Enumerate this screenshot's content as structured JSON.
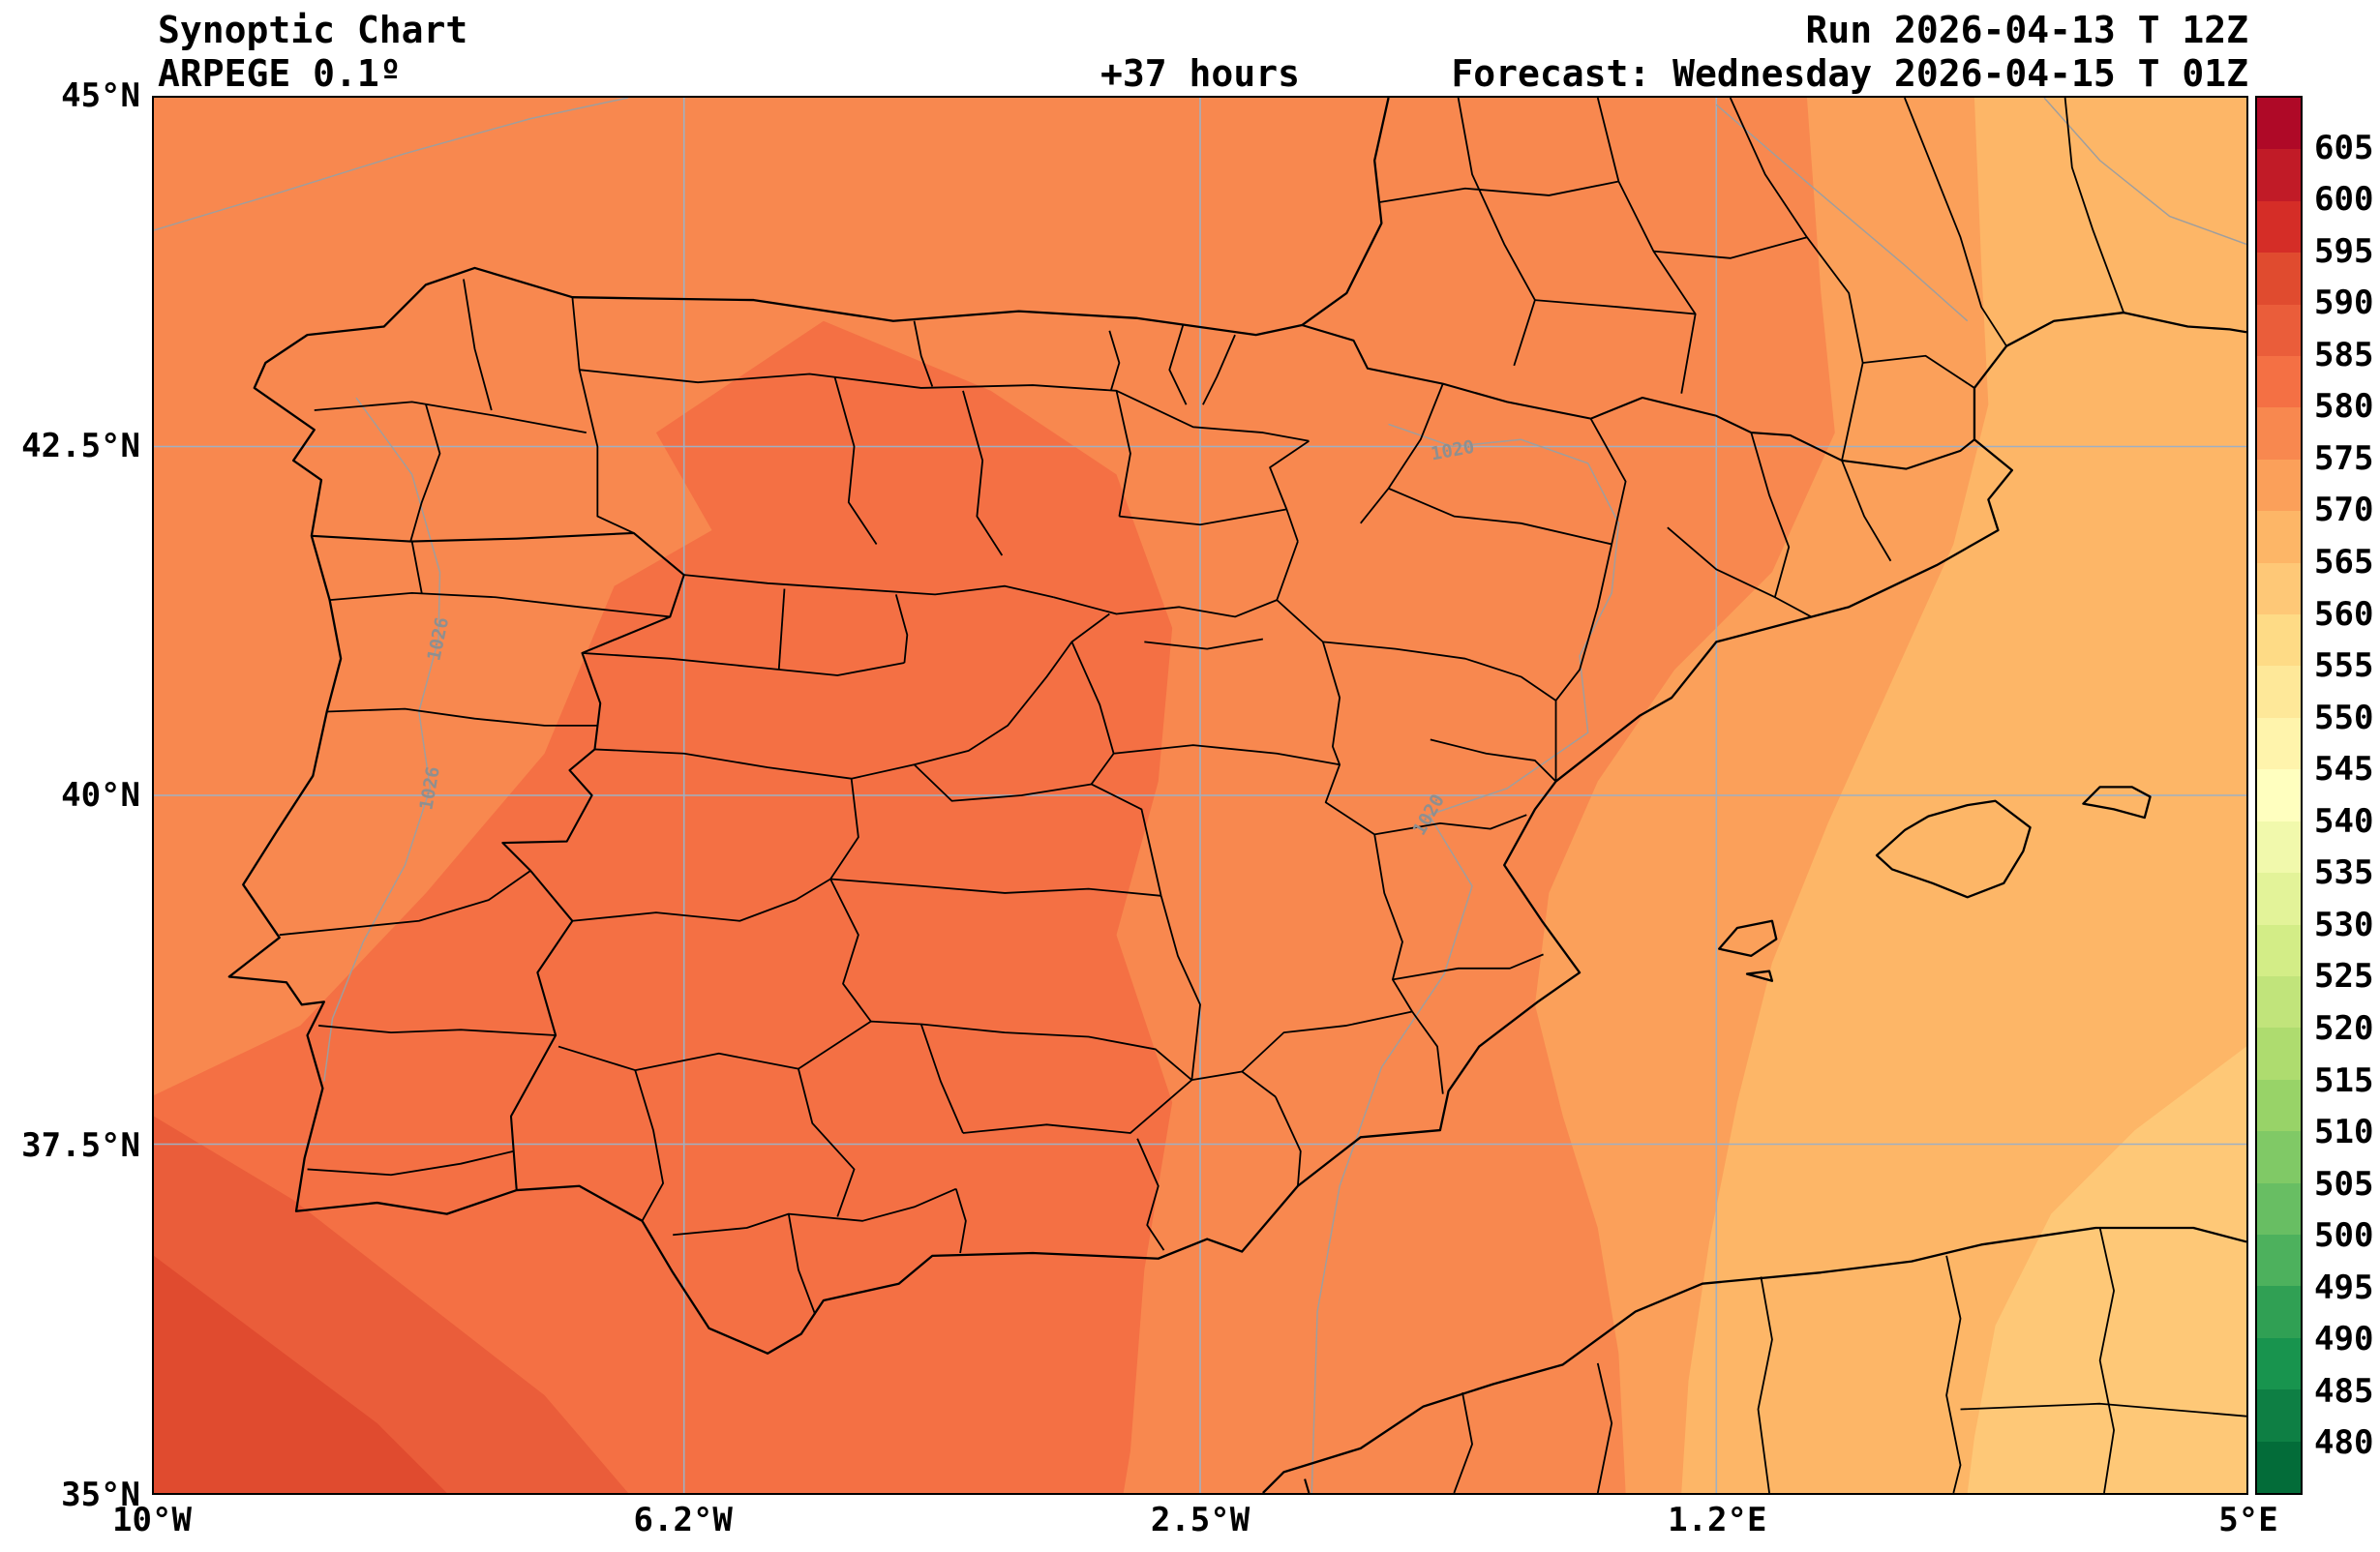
{
  "header": {
    "title": "Synoptic Chart",
    "model": "ARPEGE 0.1º",
    "lead_time": "+37 hours",
    "run": "Run 2026-04-13 T 12Z",
    "forecast": "Forecast: Wednesday 2026-04-15 T 01Z"
  },
  "axes": {
    "x_ticks": [
      {
        "label": "10°W",
        "lon": -10
      },
      {
        "label": "6.2°W",
        "lon": -6.2
      },
      {
        "label": "2.5°W",
        "lon": -2.5
      },
      {
        "label": "1.2°E",
        "lon": 1.2
      },
      {
        "label": "5°E",
        "lon": 5
      }
    ],
    "y_ticks": [
      {
        "label": "45°N",
        "lat": 45
      },
      {
        "label": "42.5°N",
        "lat": 42.5
      },
      {
        "label": "40°N",
        "lat": 40
      },
      {
        "label": "37.5°N",
        "lat": 37.5
      },
      {
        "label": "35°N",
        "lat": 35
      }
    ]
  },
  "isobar_labels": [
    {
      "text": "1020",
      "lon": -0.69,
      "lat": 42.47,
      "rotation": -10
    },
    {
      "text": "1026",
      "lon": -7.96,
      "lat": 41.12,
      "rotation": -78
    },
    {
      "text": "1026",
      "lon": -8.02,
      "lat": 40.05,
      "rotation": -80
    },
    {
      "text": "1020",
      "lon": -0.86,
      "lat": 39.86,
      "rotation": -60
    }
  ],
  "chart_data": {
    "type": "heatmap",
    "subtype": "filled-contour synoptic weather map (geopotential-style field) over the Iberian Peninsula",
    "title": "Synoptic Chart",
    "model": "ARPEGE 0.1º",
    "lead_time": "+37 hours",
    "run": "Run 2026-04-13 T 12Z",
    "forecast_valid": "Forecast: Wednesday 2026-04-15 T 01Z",
    "extent": {
      "lon_min": -10,
      "lon_max": 5,
      "lat_min": 35,
      "lat_max": 45
    },
    "x_tick_labels": [
      "10°W",
      "6.2°W",
      "2.5°W",
      "1.2°E",
      "5°E"
    ],
    "y_tick_labels": [
      "45°N",
      "42.5°N",
      "40°N",
      "37.5°N",
      "35°N"
    ],
    "grid": true,
    "colorbar": {
      "position": "right",
      "ticks": [
        605,
        600,
        595,
        590,
        585,
        580,
        575,
        570,
        565,
        560,
        555,
        550,
        545,
        540,
        535,
        530,
        525,
        520,
        515,
        510,
        505,
        500,
        495,
        490,
        485,
        480
      ],
      "value_min": 475,
      "step": 5,
      "colors_ascending": [
        "#036c39",
        "#0e7f44",
        "#18944e",
        "#30a054",
        "#4db15d",
        "#68be63",
        "#80c966",
        "#98d368",
        "#aedc6f",
        "#c1e47b",
        "#d3ed87",
        "#e3f399",
        "#f1f9ac",
        "#ffffbf",
        "#fff4ac",
        "#fee899",
        "#fedb86",
        "#fec877",
        "#fdb667",
        "#fba05a",
        "#f8884f",
        "#f47044",
        "#ea5d3a",
        "#e04b2f",
        "#d52d27",
        "#c11b27",
        "#af0927"
      ]
    },
    "filled_bands": [
      {
        "value_range": "575-580",
        "area": "base field over most of western and central Iberia and the Bay of Biscay"
      },
      {
        "value_range": "570-575",
        "area": "eastern Spain: Pyrenees through the Ebro valley down to the Alboran Sea"
      },
      {
        "value_range": "565-570",
        "area": "Mediterranean east of about 3°E including the Balearic Islands"
      },
      {
        "value_range": "560-565",
        "area": "far southeast corner near the Algerian coast"
      },
      {
        "value_range": "580-585",
        "area": "band from the north-central coast through central Iberia and Andalucia to Morocco"
      },
      {
        "value_range": "585-590",
        "area": "southwest Atlantic corner"
      },
      {
        "value_range": "590-595",
        "area": "extreme southwest corner of the domain"
      }
    ],
    "isobars": [
      {
        "label": "1026",
        "location": "north-south line over western Portugal"
      },
      {
        "label": "1020",
        "location": "meandering north-south line over eastern Spain"
      }
    ]
  }
}
